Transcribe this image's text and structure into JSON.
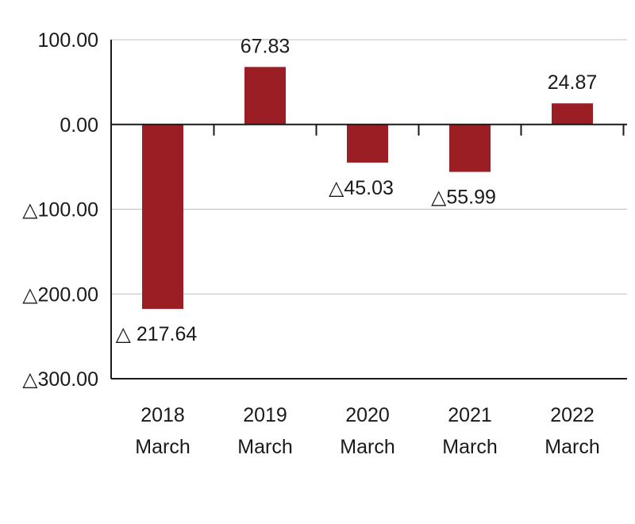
{
  "chart_data": {
    "type": "bar",
    "categories": [
      [
        "2018",
        "March"
      ],
      [
        "2019",
        "March"
      ],
      [
        "2020",
        "March"
      ],
      [
        "2021",
        "March"
      ],
      [
        "2022",
        "March"
      ]
    ],
    "values": [
      -217.64,
      67.83,
      -45.03,
      -55.99,
      24.87
    ],
    "data_labels": [
      "△ 217.64",
      "67.83",
      "△45.03",
      "△55.99",
      "24.87"
    ],
    "ylim": [
      -300,
      100
    ],
    "yticks": [
      100,
      0,
      -100,
      -200,
      -300
    ],
    "ytick_labels": [
      "100.00",
      "0.00",
      "△100.00",
      "△200.00",
      "△300.00"
    ],
    "grid": true,
    "title": "",
    "xlabel": "",
    "ylabel": "",
    "colors": {
      "bar": "#9b1e24",
      "axis": "#1a1a1a",
      "grid": "#c0c0c0",
      "text": "#1a1a1a"
    }
  }
}
